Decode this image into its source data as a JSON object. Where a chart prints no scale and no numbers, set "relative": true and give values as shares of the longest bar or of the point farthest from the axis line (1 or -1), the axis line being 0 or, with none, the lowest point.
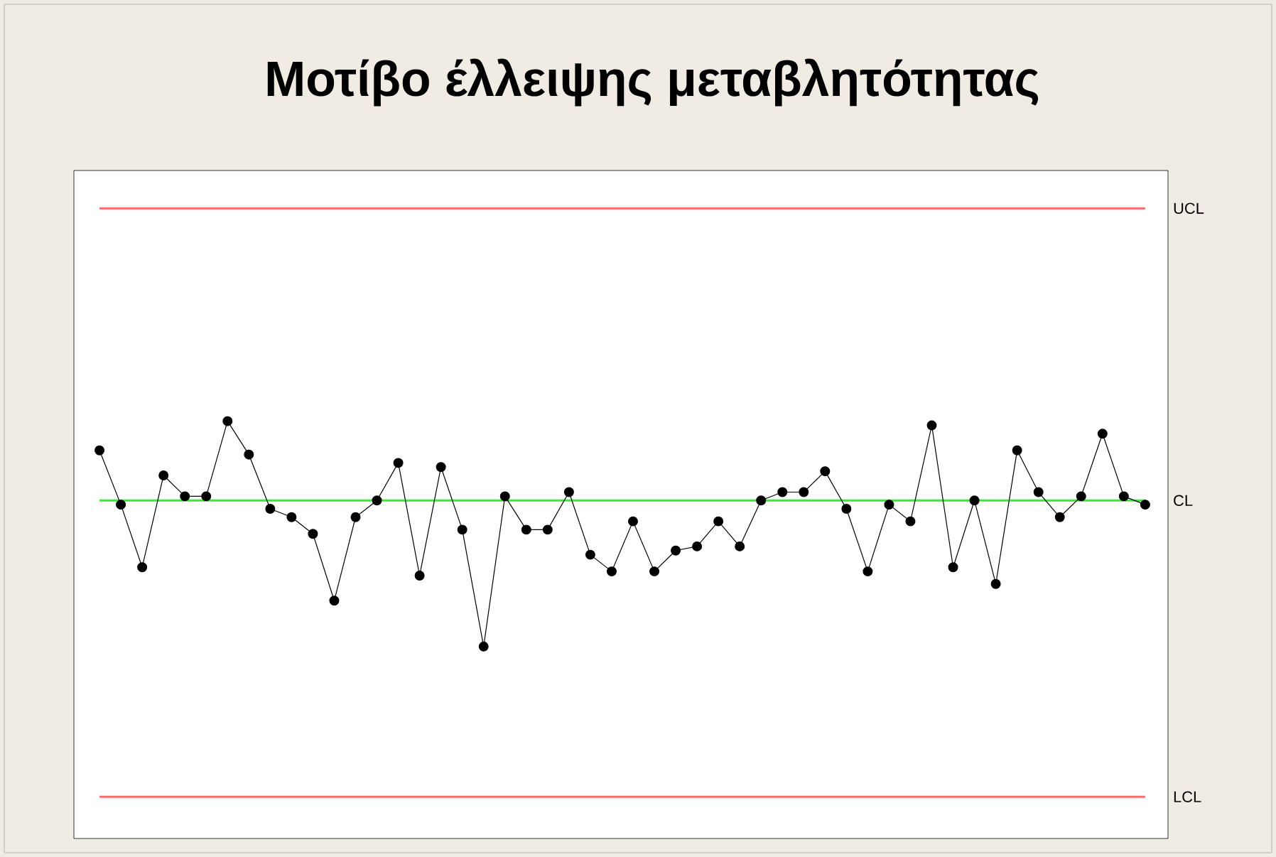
{
  "chart_data": {
    "type": "line",
    "title": "Μοτίβο έλλειψης μεταβλητότητας",
    "relative": true,
    "categories": [
      null,
      null,
      null,
      null,
      null,
      null,
      null,
      null,
      null,
      null,
      null,
      null,
      null,
      null,
      null,
      null,
      null,
      null,
      null,
      null,
      null,
      null,
      null,
      null,
      null,
      null,
      null,
      null,
      null,
      null,
      null,
      null,
      null,
      null,
      null,
      null,
      null,
      null,
      null,
      null,
      null,
      null,
      null,
      null,
      null,
      null,
      null,
      null,
      null,
      null
    ],
    "series": [
      {
        "color": "#000000",
        "values": [
          0.93,
          0.8,
          0.65,
          0.87,
          0.82,
          0.82,
          1,
          0.92,
          0.79,
          0.77,
          0.73,
          0.57,
          0.77,
          0.81,
          0.9,
          0.63,
          0.89,
          0.74,
          0.46,
          0.82,
          0.74,
          0.74,
          0.83,
          0.68,
          0.64,
          0.76,
          0.64,
          0.69,
          0.7,
          0.76,
          0.7,
          0.81,
          0.83,
          0.83,
          0.88,
          0.79,
          0.64,
          0.8,
          0.76,
          0.99,
          0.65,
          0.81,
          0.61,
          0.93,
          0.83,
          0.77,
          0.82,
          0.97,
          0.82,
          0.8
        ]
      }
    ],
    "ref_lines": [
      {
        "axis": "y",
        "value": 1.51,
        "label": "UCL",
        "color": "#ff6b6b"
      },
      {
        "axis": "y",
        "value": 0.81,
        "label": "CL",
        "color": "#33ee33"
      },
      {
        "axis": "y",
        "value": 0.1,
        "label": "LCL",
        "color": "#ff6b6b"
      }
    ],
    "marker": "circle",
    "line_style": "solid"
  }
}
